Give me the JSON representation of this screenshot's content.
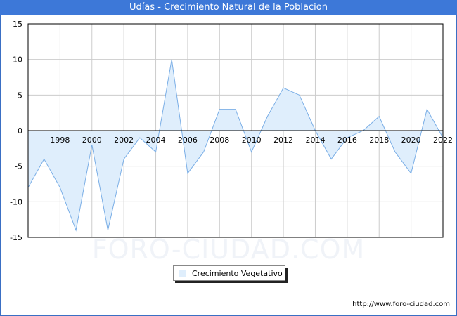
{
  "title": "Udías - Crecimiento Natural de la Poblacion",
  "watermark": "FORO-CIUDAD.COM",
  "source": "http://www.foro-ciudad.com",
  "colors": {
    "title_bg": "#3d78d8",
    "fill": "#dfeefc",
    "line": "#7aaee6",
    "grid": "#cccccc"
  },
  "legend": {
    "label": "Crecimiento Vegetativo"
  },
  "chart_data": {
    "type": "area",
    "title": "Udías - Crecimiento Natural de la Poblacion",
    "xlabel": "",
    "ylabel": "",
    "x": [
      1996,
      1997,
      1998,
      1999,
      2000,
      2001,
      2002,
      2003,
      2004,
      2005,
      2006,
      2007,
      2008,
      2009,
      2010,
      2011,
      2012,
      2013,
      2014,
      2015,
      2016,
      2017,
      2018,
      2019,
      2020,
      2021,
      2022
    ],
    "series": [
      {
        "name": "Crecimiento Vegetativo",
        "values": [
          -8,
          -4,
          -8,
          -14,
          -2,
          -14,
          -4,
          -1,
          -3,
          10,
          -6,
          -3,
          3,
          3,
          -3,
          2,
          6,
          5,
          0,
          -4,
          -1,
          0,
          2,
          -3,
          -6,
          3,
          -1
        ]
      }
    ],
    "x_tick_labels": [
      "1998",
      "2000",
      "2002",
      "2004",
      "2006",
      "2008",
      "2010",
      "2012",
      "2014",
      "2016",
      "2018",
      "2020",
      "2022"
    ],
    "y_tick_labels": [
      "15",
      "10",
      "5",
      "0",
      "-5",
      "-10",
      "-15"
    ],
    "xlim": [
      1996,
      2022
    ],
    "ylim": [
      -15,
      15
    ],
    "grid": true,
    "legend_position": "bottom-center"
  }
}
